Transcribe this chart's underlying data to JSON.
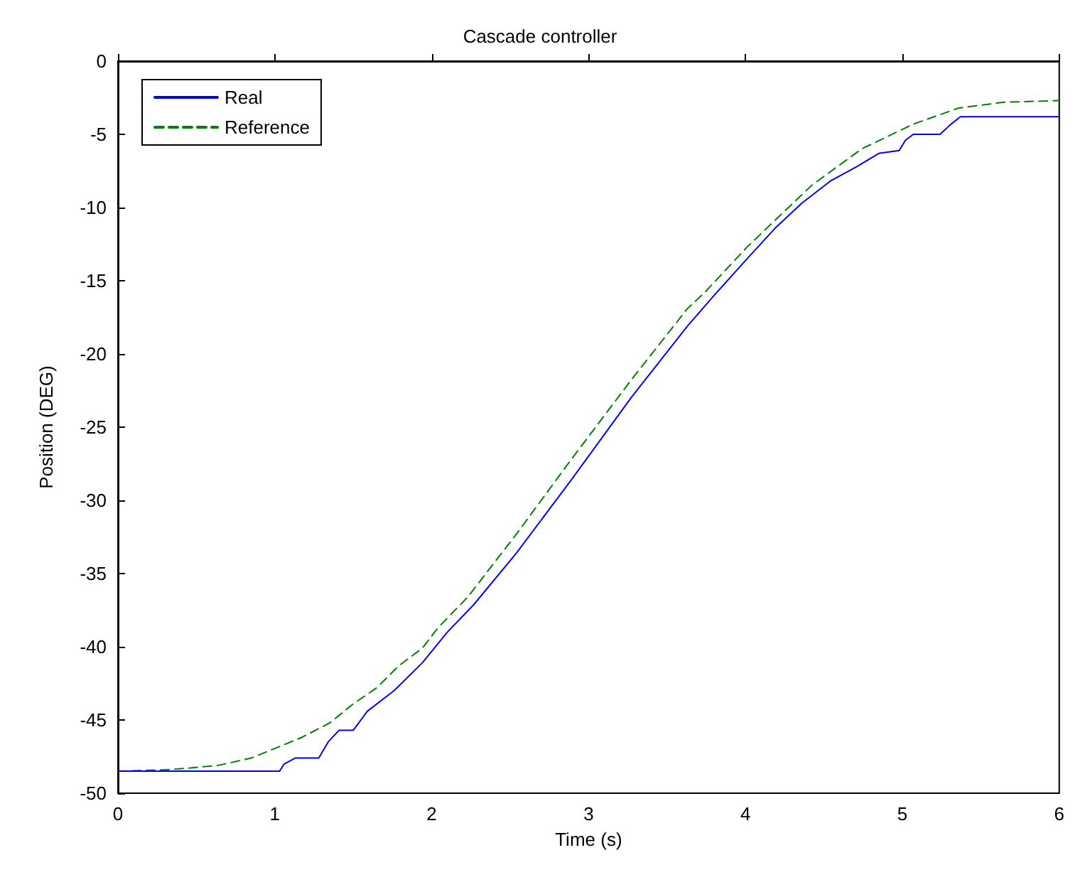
{
  "chart_data": {
    "type": "line",
    "title": "Cascade controller",
    "xlabel": "Time (s)",
    "ylabel": "Position (DEG)",
    "xlim": [
      0,
      6
    ],
    "xticks": [
      0,
      1,
      2,
      3,
      4,
      5,
      6
    ],
    "ylim": [
      -50,
      0
    ],
    "yticks": [
      -50,
      -45,
      -40,
      -35,
      -30,
      -25,
      -20,
      -15,
      -10,
      -5,
      0
    ],
    "grid": false,
    "legend": "top left",
    "marker": "none",
    "series": [
      {
        "name": "Real",
        "color": "#0000ff",
        "line_style": "solid",
        "x": [
          0,
          1.03,
          1.06,
          1.13,
          1.28,
          1.34,
          1.41,
          1.5,
          1.59,
          1.76,
          1.94,
          2.1,
          2.27,
          2.54,
          2.89,
          3.27,
          3.63,
          3.8,
          4.01,
          4.19,
          4.36,
          4.54,
          4.71,
          4.85,
          4.98,
          5.02,
          5.07,
          5.24,
          5.3,
          5.37,
          6
        ],
        "values": [
          -48.5,
          -48.5,
          -48.0,
          -47.6,
          -47.6,
          -46.5,
          -45.7,
          -45.7,
          -44.4,
          -43.0,
          -41.1,
          -39.0,
          -37.1,
          -33.6,
          -28.6,
          -23.0,
          -18.1,
          -16.0,
          -13.5,
          -11.4,
          -9.7,
          -8.2,
          -7.2,
          -6.3,
          -6.1,
          -5.4,
          -5.0,
          -5.0,
          -4.4,
          -3.8,
          -3.8
        ]
      },
      {
        "name": "Reference",
        "color": "#008000",
        "line_style": "dashed",
        "x": [
          0,
          0.3,
          0.44,
          0.64,
          0.85,
          1.01,
          1.17,
          1.35,
          1.5,
          1.65,
          1.79,
          1.94,
          2.04,
          2.23,
          2.54,
          2.89,
          3.27,
          3.63,
          3.74,
          4.01,
          4.42,
          4.74,
          5.07,
          5.36,
          5.65,
          6
        ],
        "values": [
          -48.5,
          -48.4,
          -48.3,
          -48.1,
          -47.6,
          -46.9,
          -46.2,
          -45.2,
          -43.9,
          -42.8,
          -41.3,
          -40.1,
          -38.7,
          -36.6,
          -32.3,
          -27.2,
          -21.8,
          -16.9,
          -15.8,
          -12.7,
          -8.5,
          -6.0,
          -4.3,
          -3.2,
          -2.8,
          -2.7
        ]
      }
    ]
  }
}
